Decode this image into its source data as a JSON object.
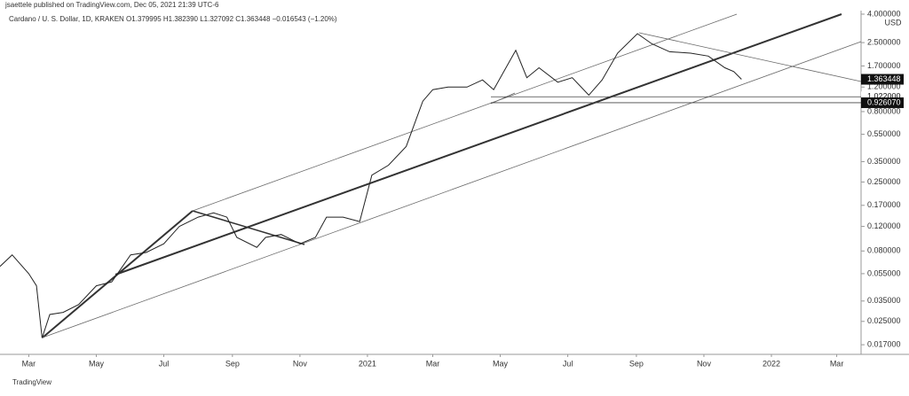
{
  "chart_data": {
    "type": "line",
    "subtitle": "jsaettele published on TradingView.com, Dec 05, 2021 21:39 UTC-6",
    "title": "Cardano / U. S. Dollar, 1D, KRAKEN  O1.379995 H1.382390 L1.327092 C1.363448 −0.016543 (−1.20%)",
    "currency": "USD",
    "footer": "TradingView",
    "color": "#222222",
    "log_scale": true,
    "x": [
      "2020-02-04",
      "2020-02-15",
      "2020-03-01",
      "2020-03-08",
      "2020-03-13",
      "2020-03-20",
      "2020-04-01",
      "2020-04-15",
      "2020-05-01",
      "2020-05-15",
      "2020-06-01",
      "2020-06-15",
      "2020-07-01",
      "2020-07-15",
      "2020-08-01",
      "2020-08-15",
      "2020-08-27",
      "2020-09-05",
      "2020-09-23",
      "2020-10-01",
      "2020-10-15",
      "2020-11-01",
      "2020-11-15",
      "2020-11-25",
      "2020-12-10",
      "2020-12-25",
      "2021-01-05",
      "2021-01-20",
      "2021-02-05",
      "2021-02-20",
      "2021-03-01",
      "2021-03-15",
      "2021-04-01",
      "2021-04-15",
      "2021-04-25",
      "2021-05-15",
      "2021-05-25",
      "2021-06-05",
      "2021-06-22",
      "2021-07-05",
      "2021-07-20",
      "2021-08-01",
      "2021-08-15",
      "2021-09-02",
      "2021-09-15",
      "2021-10-01",
      "2021-10-20",
      "2021-11-05",
      "2021-11-20",
      "2021-11-28",
      "2021-12-05"
    ],
    "values": [
      0.062,
      0.075,
      0.055,
      0.045,
      0.019,
      0.028,
      0.029,
      0.033,
      0.045,
      0.048,
      0.075,
      0.078,
      0.09,
      0.12,
      0.14,
      0.15,
      0.14,
      0.1,
      0.085,
      0.1,
      0.105,
      0.09,
      0.1,
      0.14,
      0.14,
      0.13,
      0.28,
      0.33,
      0.45,
      0.95,
      1.15,
      1.2,
      1.2,
      1.35,
      1.15,
      2.2,
      1.4,
      1.65,
      1.3,
      1.4,
      1.05,
      1.35,
      2.1,
      2.9,
      2.45,
      2.15,
      2.1,
      2.0,
      1.65,
      1.55,
      1.363448
    ],
    "xlim": [
      "2020-02-04",
      "2022-03-23"
    ],
    "xticks": [
      {
        "value": "2020-03-01",
        "label": "Mar"
      },
      {
        "value": "2020-05-01",
        "label": "May"
      },
      {
        "value": "2020-07-01",
        "label": "Jul"
      },
      {
        "value": "2020-09-01",
        "label": "Sep"
      },
      {
        "value": "2020-11-01",
        "label": "Nov"
      },
      {
        "value": "2021-01-01",
        "label": "2021"
      },
      {
        "value": "2021-03-01",
        "label": "Mar"
      },
      {
        "value": "2021-05-01",
        "label": "May"
      },
      {
        "value": "2021-07-01",
        "label": "Jul"
      },
      {
        "value": "2021-09-01",
        "label": "Sep"
      },
      {
        "value": "2021-11-01",
        "label": "Nov"
      },
      {
        "value": "2022-01-01",
        "label": "2022"
      },
      {
        "value": "2022-03-01",
        "label": "Mar"
      }
    ],
    "ylim": [
      0.0145,
      4.24
    ],
    "yticks": [
      {
        "value": 4,
        "label": "4.000000"
      },
      {
        "value": 2.5,
        "label": "2.500000"
      },
      {
        "value": 1.7,
        "label": "1.700000"
      },
      {
        "value": 1.2,
        "label": "1.200000"
      },
      {
        "value": 0.8,
        "label": "0.800000"
      },
      {
        "value": 0.55,
        "label": "0.550000"
      },
      {
        "value": 0.35,
        "label": "0.350000"
      },
      {
        "value": 0.25,
        "label": "0.250000"
      },
      {
        "value": 0.17,
        "label": "0.170000"
      },
      {
        "value": 0.12,
        "label": "0.120000"
      },
      {
        "value": 0.08,
        "label": "0.080000"
      },
      {
        "value": 0.055,
        "label": "0.055000"
      },
      {
        "value": 0.035,
        "label": "0.035000"
      },
      {
        "value": 0.025,
        "label": "0.025000"
      },
      {
        "value": 0.017,
        "label": "0.017000"
      }
    ],
    "price_markers": [
      {
        "value": 1.022,
        "label": "1.022000"
      },
      {
        "value": 0.92607,
        "label": "0.926070"
      },
      {
        "value": 1.363448,
        "label": "1.363448"
      }
    ]
  }
}
